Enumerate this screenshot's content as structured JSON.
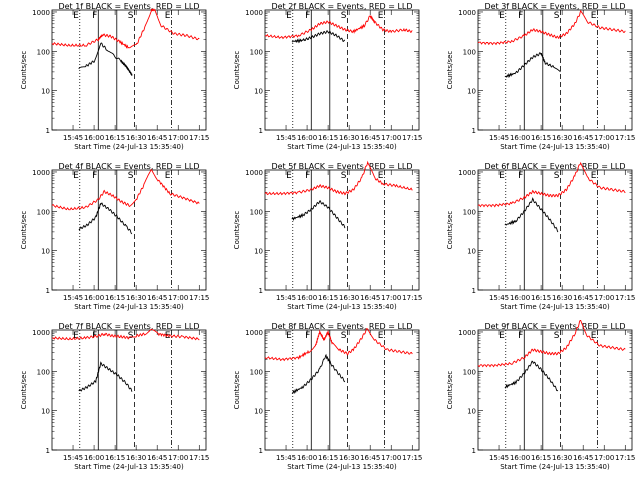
{
  "figure": {
    "panels": [
      {
        "title": "Det 1f BLACK = Events, RED = LLD"
      },
      {
        "title": "Det 2f BLACK = Events, RED = LLD"
      },
      {
        "title": "Det 3f BLACK = Events, RED = LLD"
      },
      {
        "title": "Det 4f BLACK = Events, RED = LLD"
      },
      {
        "title": "Det 5f BLACK = Events, RED = LLD"
      },
      {
        "title": "Det 6f BLACK = Events, RED = LLD"
      },
      {
        "title": "Det 7f BLACK = Events, RED = LLD"
      },
      {
        "title": "Det 8f BLACK = Events, RED = LLD"
      },
      {
        "title": "Det 9f BLACK = Events, RED = LLD"
      }
    ]
  },
  "chart_data": {
    "type": "line",
    "layout": "3x3 grid",
    "x_ticks": [
      "15:45",
      "16:00",
      "16:15",
      "16:30",
      "16:45",
      "17:00",
      "17:15"
    ],
    "xlabel": "Start Time (24-Jul-13 15:35:40)",
    "ylabel": "Counts/sec",
    "y_scale": "log",
    "ylim": [
      1,
      1000
    ],
    "y_ticks": [
      "1",
      "10",
      "100",
      "1000"
    ],
    "colors": {
      "events": "#000000",
      "lld": "#ff0000"
    },
    "markers": [
      {
        "time": "15:50",
        "style": "dotted",
        "label": "E"
      },
      {
        "time": "16:03",
        "style": "solid",
        "label": "F"
      },
      {
        "time": "16:16",
        "style": "solid",
        "label": ""
      },
      {
        "time": "16:29",
        "style": "dashed",
        "label": "S"
      },
      {
        "time": "16:55",
        "style": "dash-dot",
        "label": "E"
      }
    ],
    "panels": [
      {
        "detector": "1f",
        "events": [
          [
            15.82,
            1.55
          ],
          [
            15.9,
            1.62
          ],
          [
            16.0,
            1.75
          ],
          [
            16.08,
            2.2
          ],
          [
            16.15,
            2.05
          ],
          [
            16.23,
            1.9
          ],
          [
            16.32,
            1.75
          ],
          [
            16.38,
            1.62
          ],
          [
            16.42,
            1.5
          ],
          [
            16.45,
            1.4
          ]
        ],
        "lld": [
          [
            15.5,
            2.2
          ],
          [
            15.7,
            2.15
          ],
          [
            15.9,
            2.15
          ],
          [
            16.05,
            2.3
          ],
          [
            16.1,
            2.42
          ],
          [
            16.2,
            2.38
          ],
          [
            16.3,
            2.25
          ],
          [
            16.42,
            2.08
          ],
          [
            16.5,
            2.15
          ],
          [
            16.6,
            2.6
          ],
          [
            16.68,
            3.05
          ],
          [
            16.72,
            3.05
          ],
          [
            16.8,
            2.65
          ],
          [
            16.95,
            2.45
          ],
          [
            17.1,
            2.4
          ],
          [
            17.25,
            2.3
          ]
        ]
      },
      {
        "detector": "2f",
        "events": [
          [
            15.82,
            2.25
          ],
          [
            15.95,
            2.28
          ],
          [
            16.05,
            2.35
          ],
          [
            16.15,
            2.45
          ],
          [
            16.25,
            2.5
          ],
          [
            16.35,
            2.4
          ],
          [
            16.45,
            2.25
          ]
        ],
        "lld": [
          [
            15.5,
            2.4
          ],
          [
            15.7,
            2.35
          ],
          [
            15.9,
            2.4
          ],
          [
            16.05,
            2.55
          ],
          [
            16.15,
            2.7
          ],
          [
            16.25,
            2.75
          ],
          [
            16.35,
            2.65
          ],
          [
            16.45,
            2.55
          ],
          [
            16.55,
            2.5
          ],
          [
            16.68,
            2.65
          ],
          [
            16.75,
            2.9
          ],
          [
            16.8,
            2.75
          ],
          [
            16.9,
            2.55
          ],
          [
            17.0,
            2.5
          ],
          [
            17.15,
            2.55
          ],
          [
            17.25,
            2.5
          ]
        ]
      },
      {
        "detector": "3f",
        "events": [
          [
            15.82,
            1.35
          ],
          [
            15.95,
            1.45
          ],
          [
            16.05,
            1.65
          ],
          [
            16.15,
            1.85
          ],
          [
            16.25,
            1.95
          ],
          [
            16.3,
            1.7
          ],
          [
            16.4,
            1.6
          ],
          [
            16.48,
            1.45
          ]
        ],
        "lld": [
          [
            15.5,
            2.22
          ],
          [
            15.7,
            2.2
          ],
          [
            15.9,
            2.25
          ],
          [
            16.05,
            2.4
          ],
          [
            16.15,
            2.55
          ],
          [
            16.25,
            2.5
          ],
          [
            16.35,
            2.42
          ],
          [
            16.45,
            2.35
          ],
          [
            16.55,
            2.45
          ],
          [
            16.65,
            2.7
          ],
          [
            16.72,
            3.0
          ],
          [
            16.8,
            2.75
          ],
          [
            16.95,
            2.6
          ],
          [
            17.1,
            2.55
          ],
          [
            17.25,
            2.5
          ]
        ]
      },
      {
        "detector": "4f",
        "events": [
          [
            15.82,
            1.55
          ],
          [
            15.92,
            1.65
          ],
          [
            16.02,
            1.85
          ],
          [
            16.08,
            2.2
          ],
          [
            16.18,
            2.05
          ],
          [
            16.28,
            1.85
          ],
          [
            16.38,
            1.62
          ],
          [
            16.45,
            1.45
          ]
        ],
        "lld": [
          [
            15.5,
            2.15
          ],
          [
            15.7,
            2.05
          ],
          [
            15.9,
            2.1
          ],
          [
            16.05,
            2.3
          ],
          [
            16.12,
            2.5
          ],
          [
            16.22,
            2.4
          ],
          [
            16.32,
            2.25
          ],
          [
            16.42,
            2.15
          ],
          [
            16.5,
            2.3
          ],
          [
            16.6,
            2.7
          ],
          [
            16.68,
            3.05
          ],
          [
            16.76,
            2.8
          ],
          [
            16.9,
            2.45
          ],
          [
            17.05,
            2.35
          ],
          [
            17.25,
            2.2
          ]
        ]
      },
      {
        "detector": "5f",
        "events": [
          [
            15.82,
            1.8
          ],
          [
            15.95,
            1.9
          ],
          [
            16.05,
            2.05
          ],
          [
            16.15,
            2.25
          ],
          [
            16.25,
            2.1
          ],
          [
            16.35,
            1.85
          ],
          [
            16.45,
            1.6
          ]
        ],
        "lld": [
          [
            15.5,
            2.45
          ],
          [
            15.7,
            2.45
          ],
          [
            15.9,
            2.48
          ],
          [
            16.05,
            2.55
          ],
          [
            16.15,
            2.65
          ],
          [
            16.25,
            2.6
          ],
          [
            16.35,
            2.5
          ],
          [
            16.45,
            2.45
          ],
          [
            16.55,
            2.55
          ],
          [
            16.65,
            2.85
          ],
          [
            16.72,
            3.25
          ],
          [
            16.8,
            2.85
          ],
          [
            16.9,
            2.7
          ],
          [
            17.05,
            2.65
          ],
          [
            17.25,
            2.55
          ]
        ]
      },
      {
        "detector": "6f",
        "events": [
          [
            15.82,
            1.65
          ],
          [
            15.95,
            1.75
          ],
          [
            16.05,
            2.0
          ],
          [
            16.15,
            2.3
          ],
          [
            16.25,
            2.05
          ],
          [
            16.35,
            1.8
          ],
          [
            16.45,
            1.5
          ]
        ],
        "lld": [
          [
            15.5,
            2.15
          ],
          [
            15.7,
            2.15
          ],
          [
            15.9,
            2.2
          ],
          [
            16.05,
            2.35
          ],
          [
            16.15,
            2.5
          ],
          [
            16.25,
            2.45
          ],
          [
            16.35,
            2.4
          ],
          [
            16.45,
            2.4
          ],
          [
            16.55,
            2.55
          ],
          [
            16.65,
            2.9
          ],
          [
            16.72,
            3.25
          ],
          [
            16.8,
            2.85
          ],
          [
            16.95,
            2.6
          ],
          [
            17.1,
            2.55
          ],
          [
            17.25,
            2.5
          ]
        ]
      },
      {
        "detector": "7f",
        "events": [
          [
            15.82,
            1.5
          ],
          [
            15.92,
            1.6
          ],
          [
            16.02,
            1.75
          ],
          [
            16.08,
            2.2
          ],
          [
            16.18,
            2.05
          ],
          [
            16.28,
            1.9
          ],
          [
            16.38,
            1.7
          ],
          [
            16.45,
            1.5
          ]
        ],
        "lld": [
          [
            15.5,
            2.85
          ],
          [
            15.7,
            2.82
          ],
          [
            15.9,
            2.85
          ],
          [
            16.05,
            2.9
          ],
          [
            16.12,
            2.95
          ],
          [
            16.22,
            2.9
          ],
          [
            16.32,
            2.88
          ],
          [
            16.42,
            2.85
          ],
          [
            16.5,
            2.9
          ],
          [
            16.6,
            2.95
          ],
          [
            16.68,
            3.05
          ],
          [
            16.76,
            2.95
          ],
          [
            16.9,
            2.9
          ],
          [
            17.05,
            2.88
          ],
          [
            17.25,
            2.82
          ]
        ]
      },
      {
        "detector": "8f",
        "events": [
          [
            15.82,
            1.45
          ],
          [
            15.95,
            1.6
          ],
          [
            16.05,
            1.8
          ],
          [
            16.15,
            2.05
          ],
          [
            16.22,
            2.4
          ],
          [
            16.28,
            2.2
          ],
          [
            16.35,
            2.0
          ],
          [
            16.45,
            1.75
          ]
        ],
        "lld": [
          [
            15.5,
            2.35
          ],
          [
            15.7,
            2.3
          ],
          [
            15.9,
            2.35
          ],
          [
            16.02,
            2.5
          ],
          [
            16.1,
            2.65
          ],
          [
            16.15,
            3.0
          ],
          [
            16.2,
            2.8
          ],
          [
            16.25,
            3.0
          ],
          [
            16.3,
            2.7
          ],
          [
            16.38,
            2.55
          ],
          [
            16.48,
            2.45
          ],
          [
            16.55,
            2.55
          ],
          [
            16.65,
            2.85
          ],
          [
            16.72,
            3.1
          ],
          [
            16.8,
            2.8
          ],
          [
            16.95,
            2.55
          ],
          [
            17.1,
            2.5
          ],
          [
            17.25,
            2.45
          ]
        ]
      },
      {
        "detector": "9f",
        "events": [
          [
            15.82,
            1.6
          ],
          [
            15.95,
            1.72
          ],
          [
            16.05,
            1.95
          ],
          [
            16.15,
            2.25
          ],
          [
            16.25,
            2.05
          ],
          [
            16.35,
            1.8
          ],
          [
            16.45,
            1.5
          ]
        ],
        "lld": [
          [
            15.5,
            2.15
          ],
          [
            15.7,
            2.15
          ],
          [
            15.9,
            2.2
          ],
          [
            16.05,
            2.35
          ],
          [
            16.15,
            2.55
          ],
          [
            16.25,
            2.5
          ],
          [
            16.35,
            2.45
          ],
          [
            16.45,
            2.45
          ],
          [
            16.55,
            2.6
          ],
          [
            16.65,
            2.95
          ],
          [
            16.72,
            3.3
          ],
          [
            16.8,
            2.9
          ],
          [
            16.95,
            2.65
          ],
          [
            17.1,
            2.6
          ],
          [
            17.25,
            2.55
          ]
        ]
      }
    ]
  }
}
